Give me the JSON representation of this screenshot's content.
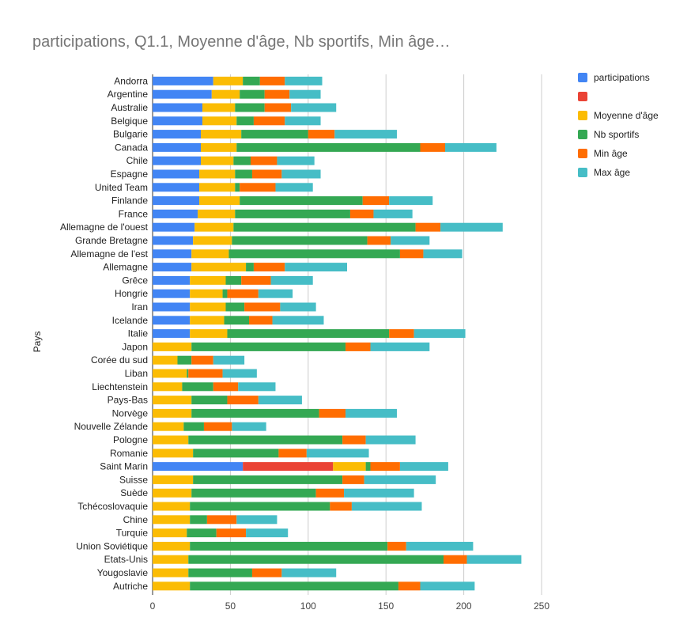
{
  "chart_data": {
    "type": "bar",
    "orientation": "horizontal",
    "stacked": true,
    "title": "participations, Q1.1, Moyenne d'âge, Nb sportifs, Min âge…",
    "ylabel": "Pays",
    "xlabel": "",
    "xlim": [
      0,
      250
    ],
    "xticks": [
      0,
      50,
      100,
      150,
      200,
      250
    ],
    "grid": true,
    "legend_position": "right",
    "categories": [
      "Andorra",
      "Argentine",
      "Australie",
      "Belgique",
      "Bulgarie",
      "Canada",
      "Chile",
      "Espagne",
      "United Team",
      "Finlande",
      "France",
      "Allemagne de l'ouest",
      "Grande Bretagne",
      "Allemagne de l'est",
      "Allemagne",
      "Grêce",
      "Hongrie",
      "Iran",
      "Icelande",
      "Italie",
      "Japon",
      "Corée du sud",
      "Liban",
      "Liechtenstein",
      "Pays-Bas",
      "Norvège",
      "Nouvelle Zélande",
      "Pologne",
      "Romanie",
      "Saint Marin",
      "Suisse",
      "Suède",
      "Tchécoslovaquie",
      "Chine",
      "Turquie",
      "Union Soviétique",
      "Etats-Unis",
      "Yougoslavie",
      "Autriche"
    ],
    "series": [
      {
        "name": "participations",
        "color": "#4285f4",
        "values": [
          39,
          38,
          32,
          32,
          31,
          31,
          31,
          30,
          30,
          30,
          29,
          27,
          26,
          25,
          25,
          24,
          24,
          24,
          24,
          24,
          0,
          0,
          0,
          0,
          0,
          0,
          0,
          0,
          0,
          58,
          0,
          0,
          0,
          0,
          0,
          0,
          0,
          0,
          0
        ]
      },
      {
        "name": "",
        "color": "#ea4335",
        "values": [
          0,
          0,
          0,
          0,
          0,
          0,
          0,
          0,
          0,
          0,
          0,
          0,
          0,
          0,
          0,
          0,
          0,
          0,
          0,
          0,
          0,
          0,
          0,
          0,
          0,
          0,
          0,
          0,
          0,
          58,
          0,
          0,
          0,
          0,
          0,
          0,
          0,
          0,
          0
        ]
      },
      {
        "name": "Moyenne d'âge",
        "color": "#fbbc04",
        "values": [
          19,
          18,
          21,
          22,
          26,
          23,
          21,
          23,
          23,
          26,
          24,
          25,
          25,
          24,
          35,
          23,
          21,
          23,
          22,
          24,
          25,
          16,
          22,
          19,
          25,
          25,
          20,
          23,
          26,
          21,
          26,
          25,
          24,
          24,
          22,
          24,
          23,
          23,
          24
        ]
      },
      {
        "name": "Nb sportifs",
        "color": "#34a853",
        "values": [
          11,
          16,
          19,
          11,
          43,
          118,
          11,
          11,
          3,
          79,
          74,
          117,
          87,
          110,
          5,
          10,
          3,
          12,
          16,
          104,
          99,
          9,
          1,
          20,
          23,
          82,
          13,
          99,
          55,
          3,
          96,
          80,
          90,
          11,
          19,
          127,
          164,
          41,
          134
        ]
      },
      {
        "name": "Min âge",
        "color": "#ff6d01",
        "values": [
          16,
          16,
          17,
          20,
          17,
          16,
          17,
          19,
          23,
          17,
          15,
          16,
          15,
          15,
          20,
          19,
          20,
          23,
          15,
          16,
          16,
          14,
          22,
          16,
          20,
          17,
          18,
          15,
          18,
          19,
          14,
          18,
          14,
          19,
          19,
          12,
          15,
          19,
          14
        ]
      },
      {
        "name": "Max âge",
        "color": "#46bdc6",
        "values": [
          24,
          20,
          29,
          23,
          40,
          33,
          24,
          25,
          24,
          28,
          25,
          40,
          25,
          25,
          40,
          27,
          22,
          23,
          33,
          33,
          38,
          20,
          22,
          24,
          28,
          33,
          22,
          32,
          40,
          31,
          46,
          45,
          45,
          26,
          27,
          43,
          35,
          35,
          35
        ]
      }
    ]
  }
}
